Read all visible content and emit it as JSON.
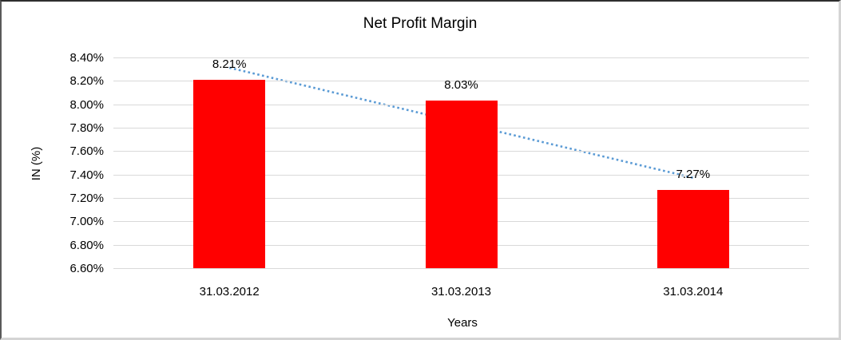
{
  "chart_title": "Net Profit Margin",
  "chart_data": {
    "type": "bar",
    "title": "Net Profit Margin",
    "xlabel": "Years",
    "ylabel": "IN (%)",
    "categories": [
      "31.03.2012",
      "31.03.2013",
      "31.03.2014"
    ],
    "values": [
      8.21,
      8.03,
      7.27
    ],
    "data_labels": [
      "8.21%",
      "8.03%",
      "7.27%"
    ],
    "y_ticks": [
      "8.40%",
      "8.20%",
      "8.00%",
      "7.80%",
      "7.60%",
      "7.40%",
      "7.20%",
      "7.00%",
      "6.80%",
      "6.60%"
    ],
    "ylim": [
      6.6,
      8.4
    ],
    "tick_step": 0.2,
    "grid": true,
    "legend": "none",
    "bar_color": "#ff0000",
    "gridline_color": "#d9d9d9",
    "trendline": {
      "type": "linear",
      "style": "dotted",
      "color": "#5b9bd5",
      "from_value": 8.21,
      "to_value": 7.27
    }
  }
}
